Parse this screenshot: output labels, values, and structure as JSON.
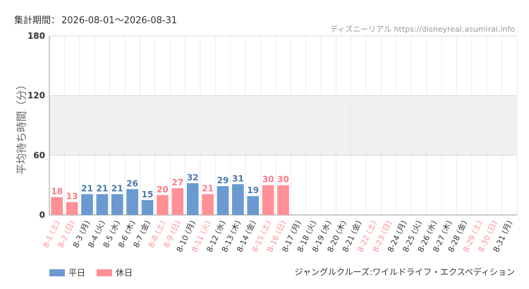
{
  "header": {
    "period_label": "集計期間：",
    "period_value": "2026-08-01～2026-08-31",
    "source": "ディズニーリアル https://disneyreal.asumirai.info"
  },
  "footer": {
    "attraction": "ジャングルクルーズ:ワイルドライフ・エクスペディション"
  },
  "colors": {
    "weekday": "#6a9ad0",
    "holiday": "#ff9196",
    "weekday_label": "#4a77ad",
    "holiday_label": "#ff7b86",
    "band": "#f0f0f0",
    "grid": "#dddddd"
  },
  "chart_data": {
    "type": "bar",
    "ylabel": "平均待ち時間（分）",
    "ylim": [
      0,
      180
    ],
    "yticks": [
      0,
      60,
      120,
      180
    ],
    "grid": true,
    "legend_position": "bottom-left",
    "legend": [
      {
        "name": "平日",
        "kind": "weekday"
      },
      {
        "name": "休日",
        "kind": "holiday"
      }
    ],
    "categories": [
      "8-1 (土)",
      "8-2 (日)",
      "8-3 (月)",
      "8-4 (火)",
      "8-5 (水)",
      "8-6 (木)",
      "8-7 (金)",
      "8-8 (土)",
      "8-9 (日)",
      "8-10 (月)",
      "8-11 (火)",
      "8-12 (水)",
      "8-13 (木)",
      "8-14 (金)",
      "8-15 (土)",
      "8-16 (日)",
      "8-17 (月)",
      "8-18 (火)",
      "8-19 (水)",
      "8-20 (木)",
      "8-21 (金)",
      "8-22 (土)",
      "8-23 (日)",
      "8-24 (月)",
      "8-25 (火)",
      "8-26 (水)",
      "8-27 (木)",
      "8-28 (金)",
      "8-29 (土)",
      "8-30 (日)",
      "8-31 (月)"
    ],
    "day_type": [
      "holiday",
      "holiday",
      "weekday",
      "weekday",
      "weekday",
      "weekday",
      "weekday",
      "holiday",
      "holiday",
      "weekday",
      "holiday",
      "weekday",
      "weekday",
      "weekday",
      "holiday",
      "holiday",
      "weekday",
      "weekday",
      "weekday",
      "weekday",
      "weekday",
      "holiday",
      "holiday",
      "weekday",
      "weekday",
      "weekday",
      "weekday",
      "weekday",
      "holiday",
      "holiday",
      "weekday"
    ],
    "values": [
      18,
      13,
      21,
      21,
      21,
      26,
      15,
      20,
      27,
      32,
      21,
      29,
      31,
      19,
      30,
      30,
      null,
      null,
      null,
      null,
      null,
      null,
      null,
      null,
      null,
      null,
      null,
      null,
      null,
      null,
      null
    ]
  }
}
